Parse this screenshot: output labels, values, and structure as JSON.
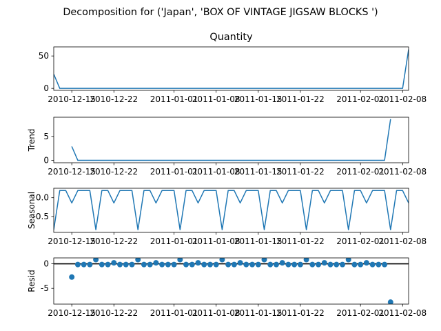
{
  "suptitle": "Decomposition for ('Japan', 'BOX OF VINTAGE JIGSAW BLOCKS ')",
  "x_tick_labels": [
    "2010-12-15",
    "2010-12-22",
    "2011-01-01",
    "2011-01-08",
    "2011-01-15",
    "2011-01-22",
    "2011-02-01",
    "2011-02-08"
  ],
  "line_color": "#1f77b4",
  "chart_data": [
    {
      "name": "quantity",
      "type": "line",
      "title": "Quantity",
      "ylabel": "",
      "ylim": [
        -3,
        64
      ],
      "yticks": [
        0,
        50
      ],
      "points": [
        {
          "x": "2010-12-12",
          "y": 22
        },
        {
          "x": "2010-12-13",
          "y": 0
        },
        {
          "x": "2011-02-08",
          "y": 0
        },
        {
          "x": "2011-02-09",
          "y": 60
        }
      ]
    },
    {
      "name": "trend",
      "type": "line",
      "title": "",
      "ylabel": "Trend",
      "ylim": [
        -0.5,
        9
      ],
      "yticks": [
        0,
        5
      ],
      "points": [
        {
          "x": "2010-12-15",
          "y": 2.9
        },
        {
          "x": "2010-12-16",
          "y": 0
        },
        {
          "x": "2011-02-05",
          "y": 0
        },
        {
          "x": "2011-02-06",
          "y": 8.6
        }
      ]
    },
    {
      "name": "seasonal",
      "type": "line",
      "title": "",
      "ylabel": "Seasonal",
      "ylim": [
        -0.92,
        0.25
      ],
      "yticks": [
        0.0,
        -0.5
      ],
      "pattern": [
        -0.85,
        0.19,
        0.19,
        -0.14,
        0.19,
        0.19,
        0.19
      ],
      "start": "2010-12-12",
      "end": "2011-02-09"
    },
    {
      "name": "resid",
      "type": "scatter",
      "title": "",
      "ylabel": "Resid",
      "ylim": [
        -8.2,
        1.2
      ],
      "yticks": [
        0,
        -5
      ],
      "baseline": 0,
      "points": [
        {
          "x": "2010-12-15",
          "y": -2.7
        },
        {
          "x": "2010-12-16",
          "y": -0.15
        },
        {
          "x": "2010-12-17",
          "y": -0.15
        },
        {
          "x": "2010-12-18",
          "y": -0.15
        },
        {
          "x": "2010-12-19",
          "y": 0.85
        },
        {
          "x": "2010-12-20",
          "y": -0.15
        },
        {
          "x": "2010-12-21",
          "y": -0.15
        },
        {
          "x": "2010-12-22",
          "y": 0.2
        },
        {
          "x": "2010-12-23",
          "y": -0.15
        },
        {
          "x": "2010-12-24",
          "y": -0.15
        },
        {
          "x": "2010-12-25",
          "y": -0.15
        },
        {
          "x": "2010-12-26",
          "y": 0.85
        },
        {
          "x": "2010-12-27",
          "y": -0.15
        },
        {
          "x": "2010-12-28",
          "y": -0.15
        },
        {
          "x": "2010-12-29",
          "y": 0.2
        },
        {
          "x": "2010-12-30",
          "y": -0.15
        },
        {
          "x": "2010-12-31",
          "y": -0.15
        },
        {
          "x": "2011-01-01",
          "y": -0.15
        },
        {
          "x": "2011-01-02",
          "y": 0.85
        },
        {
          "x": "2011-01-03",
          "y": -0.15
        },
        {
          "x": "2011-01-04",
          "y": -0.15
        },
        {
          "x": "2011-01-05",
          "y": 0.2
        },
        {
          "x": "2011-01-06",
          "y": -0.15
        },
        {
          "x": "2011-01-07",
          "y": -0.15
        },
        {
          "x": "2011-01-08",
          "y": -0.15
        },
        {
          "x": "2011-01-09",
          "y": 0.85
        },
        {
          "x": "2011-01-10",
          "y": -0.15
        },
        {
          "x": "2011-01-11",
          "y": -0.15
        },
        {
          "x": "2011-01-12",
          "y": 0.2
        },
        {
          "x": "2011-01-13",
          "y": -0.15
        },
        {
          "x": "2011-01-14",
          "y": -0.15
        },
        {
          "x": "2011-01-15",
          "y": -0.15
        },
        {
          "x": "2011-01-16",
          "y": 0.85
        },
        {
          "x": "2011-01-17",
          "y": -0.15
        },
        {
          "x": "2011-01-18",
          "y": -0.15
        },
        {
          "x": "2011-01-19",
          "y": 0.2
        },
        {
          "x": "2011-01-20",
          "y": -0.15
        },
        {
          "x": "2011-01-21",
          "y": -0.15
        },
        {
          "x": "2011-01-22",
          "y": -0.15
        },
        {
          "x": "2011-01-23",
          "y": 0.85
        },
        {
          "x": "2011-01-24",
          "y": -0.15
        },
        {
          "x": "2011-01-25",
          "y": -0.15
        },
        {
          "x": "2011-01-26",
          "y": 0.2
        },
        {
          "x": "2011-01-27",
          "y": -0.15
        },
        {
          "x": "2011-01-28",
          "y": -0.15
        },
        {
          "x": "2011-01-29",
          "y": -0.15
        },
        {
          "x": "2011-01-30",
          "y": 0.85
        },
        {
          "x": "2011-01-31",
          "y": -0.15
        },
        {
          "x": "2011-02-01",
          "y": -0.15
        },
        {
          "x": "2011-02-02",
          "y": 0.2
        },
        {
          "x": "2011-02-03",
          "y": -0.15
        },
        {
          "x": "2011-02-04",
          "y": -0.15
        },
        {
          "x": "2011-02-05",
          "y": -0.15
        },
        {
          "x": "2011-02-06",
          "y": -7.8
        }
      ]
    }
  ]
}
